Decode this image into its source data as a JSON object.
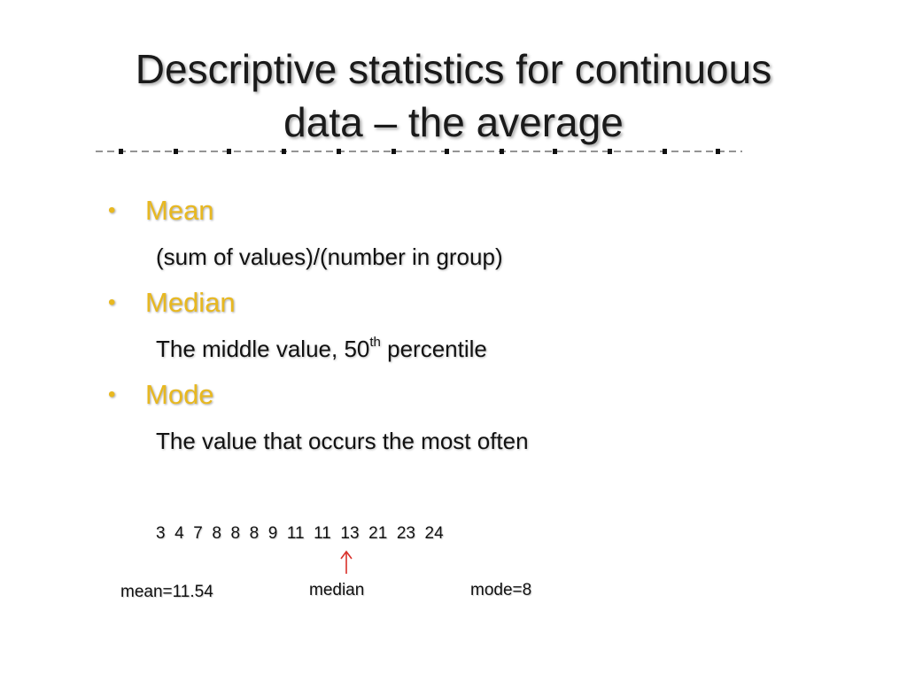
{
  "title": {
    "line1": "Descriptive statistics for continuous",
    "line2": "data – the average"
  },
  "bullets": [
    {
      "label": "Mean",
      "description": "(sum of values)/(number in group)"
    },
    {
      "label": "Median",
      "description_prefix": "The middle value, 50",
      "description_sup": "th",
      "description_suffix": " percentile"
    },
    {
      "label": "Mode",
      "description": "The value that occurs the most often"
    }
  ],
  "bullet_glyph": "•",
  "example": {
    "numbers": "3  4  7  8  8  8  9  11  11  13  21  23  24",
    "arrow": "↑",
    "mean_label": "mean=11.54",
    "median_label": "median",
    "mode_label": "mode=8"
  },
  "colors": {
    "accent": "#e8b820",
    "arrow": "#d9302a",
    "text": "#111111"
  }
}
